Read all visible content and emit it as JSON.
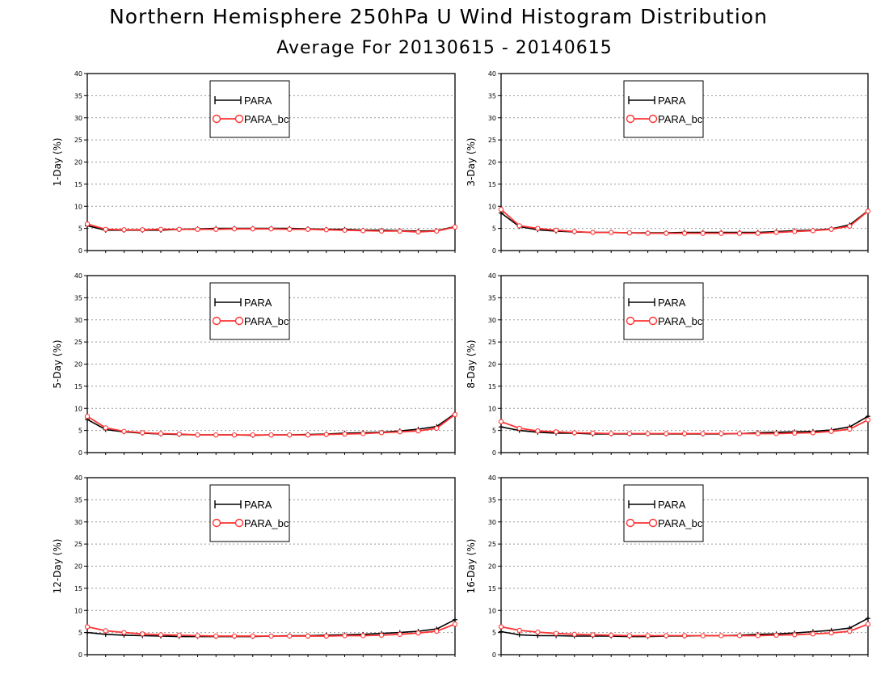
{
  "title": "Northern Hemisphere 250hPa U Wind Histogram Distribution",
  "subtitle": "Average For 20130615 - 20140615",
  "colors": {
    "PARA": "#000000",
    "PARA_bc": "#ff3333",
    "grid": "#999999"
  },
  "chart_data": [
    {
      "type": "line",
      "ylabel": "1-Day (%)",
      "ylim": [
        0,
        40
      ],
      "yticks": [
        0,
        5,
        10,
        15,
        20,
        25,
        30,
        35,
        40
      ],
      "grid": true,
      "legend": "top-center",
      "x": [
        1,
        2,
        3,
        4,
        5,
        6,
        7,
        8,
        9,
        10,
        11,
        12,
        13,
        14,
        15,
        16,
        17,
        18,
        19,
        20,
        21
      ],
      "series": [
        {
          "name": "PARA",
          "values": [
            5.6,
            4.6,
            4.6,
            4.6,
            4.6,
            4.8,
            4.9,
            5.0,
            5.0,
            5.0,
            5.0,
            5.0,
            4.9,
            4.8,
            4.8,
            4.6,
            4.6,
            4.5,
            4.4,
            4.5,
            5.4
          ]
        },
        {
          "name": "PARA_bc",
          "values": [
            6.0,
            4.8,
            4.7,
            4.7,
            4.8,
            4.8,
            4.8,
            4.8,
            4.9,
            4.9,
            4.9,
            4.8,
            4.8,
            4.7,
            4.6,
            4.5,
            4.4,
            4.4,
            4.2,
            4.4,
            5.3
          ]
        }
      ]
    },
    {
      "type": "line",
      "ylabel": "3-Day (%)",
      "ylim": [
        0,
        40
      ],
      "yticks": [
        0,
        5,
        10,
        15,
        20,
        25,
        30,
        35,
        40
      ],
      "grid": true,
      "legend": "top-center",
      "x": [
        1,
        2,
        3,
        4,
        5,
        6,
        7,
        8,
        9,
        10,
        11,
        12,
        13,
        14,
        15,
        16,
        17,
        18,
        19,
        20,
        21
      ],
      "series": [
        {
          "name": "PARA",
          "values": [
            8.5,
            5.4,
            4.7,
            4.4,
            4.2,
            4.1,
            4.1,
            4.0,
            4.0,
            4.0,
            4.1,
            4.1,
            4.1,
            4.1,
            4.1,
            4.3,
            4.5,
            4.6,
            4.9,
            5.8,
            9.0
          ]
        },
        {
          "name": "PARA_bc",
          "values": [
            9.3,
            5.6,
            5.0,
            4.6,
            4.3,
            4.1,
            4.1,
            4.0,
            3.9,
            3.9,
            3.9,
            3.9,
            3.9,
            3.9,
            3.9,
            4.1,
            4.3,
            4.5,
            4.8,
            5.5,
            8.9
          ]
        }
      ]
    },
    {
      "type": "line",
      "ylabel": "5-Day (%)",
      "ylim": [
        0,
        40
      ],
      "yticks": [
        0,
        5,
        10,
        15,
        20,
        25,
        30,
        35,
        40
      ],
      "grid": true,
      "legend": "top-center",
      "x": [
        1,
        2,
        3,
        4,
        5,
        6,
        7,
        8,
        9,
        10,
        11,
        12,
        13,
        14,
        15,
        16,
        17,
        18,
        19,
        20,
        21
      ],
      "series": [
        {
          "name": "PARA",
          "values": [
            7.5,
            5.2,
            4.7,
            4.4,
            4.2,
            4.1,
            4.0,
            4.0,
            4.0,
            3.9,
            4.0,
            4.0,
            4.1,
            4.2,
            4.4,
            4.5,
            4.6,
            4.9,
            5.3,
            5.9,
            8.8
          ]
        },
        {
          "name": "PARA_bc",
          "values": [
            8.2,
            5.6,
            4.8,
            4.5,
            4.3,
            4.2,
            4.0,
            4.0,
            4.0,
            4.0,
            4.0,
            4.0,
            4.0,
            4.1,
            4.2,
            4.3,
            4.5,
            4.7,
            4.9,
            5.5,
            8.6
          ]
        }
      ]
    },
    {
      "type": "line",
      "ylabel": "8-Day (%)",
      "ylim": [
        0,
        40
      ],
      "yticks": [
        0,
        5,
        10,
        15,
        20,
        25,
        30,
        35,
        40
      ],
      "grid": true,
      "legend": "top-center",
      "x": [
        1,
        2,
        3,
        4,
        5,
        6,
        7,
        8,
        9,
        10,
        11,
        12,
        13,
        14,
        15,
        16,
        17,
        18,
        19,
        20,
        21
      ],
      "series": [
        {
          "name": "PARA",
          "values": [
            5.8,
            5.0,
            4.6,
            4.4,
            4.4,
            4.2,
            4.2,
            4.2,
            4.2,
            4.2,
            4.2,
            4.2,
            4.2,
            4.3,
            4.5,
            4.6,
            4.7,
            4.8,
            5.1,
            5.8,
            8.2
          ]
        },
        {
          "name": "PARA_bc",
          "values": [
            7.0,
            5.5,
            4.9,
            4.7,
            4.5,
            4.4,
            4.3,
            4.3,
            4.3,
            4.3,
            4.3,
            4.3,
            4.3,
            4.3,
            4.3,
            4.3,
            4.4,
            4.5,
            4.8,
            5.3,
            7.4
          ]
        }
      ]
    },
    {
      "type": "line",
      "ylabel": "12-Day (%)",
      "ylim": [
        0,
        40
      ],
      "yticks": [
        0,
        5,
        10,
        15,
        20,
        25,
        30,
        35,
        40
      ],
      "grid": true,
      "legend": "top-center",
      "x": [
        1,
        2,
        3,
        4,
        5,
        6,
        7,
        8,
        9,
        10,
        11,
        12,
        13,
        14,
        15,
        16,
        17,
        18,
        19,
        20,
        21
      ],
      "series": [
        {
          "name": "PARA",
          "values": [
            5.0,
            4.6,
            4.4,
            4.3,
            4.2,
            4.1,
            4.1,
            4.1,
            4.1,
            4.1,
            4.2,
            4.3,
            4.3,
            4.4,
            4.5,
            4.6,
            4.8,
            5.0,
            5.3,
            5.8,
            7.9
          ]
        },
        {
          "name": "PARA_bc",
          "values": [
            6.3,
            5.4,
            5.0,
            4.7,
            4.5,
            4.4,
            4.3,
            4.2,
            4.2,
            4.2,
            4.2,
            4.2,
            4.2,
            4.2,
            4.3,
            4.3,
            4.4,
            4.6,
            4.9,
            5.3,
            6.9
          ]
        }
      ]
    },
    {
      "type": "line",
      "ylabel": "16-Day (%)",
      "ylim": [
        0,
        40
      ],
      "yticks": [
        0,
        5,
        10,
        15,
        20,
        25,
        30,
        35,
        40
      ],
      "grid": true,
      "legend": "top-center",
      "x": [
        1,
        2,
        3,
        4,
        5,
        6,
        7,
        8,
        9,
        10,
        11,
        12,
        13,
        14,
        15,
        16,
        17,
        18,
        19,
        20,
        21
      ],
      "series": [
        {
          "name": "PARA",
          "values": [
            5.2,
            4.5,
            4.3,
            4.3,
            4.2,
            4.2,
            4.2,
            4.1,
            4.1,
            4.2,
            4.2,
            4.3,
            4.3,
            4.4,
            4.6,
            4.7,
            4.9,
            5.2,
            5.5,
            6.0,
            8.2
          ]
        },
        {
          "name": "PARA_bc",
          "values": [
            6.3,
            5.5,
            5.1,
            4.8,
            4.6,
            4.5,
            4.4,
            4.3,
            4.3,
            4.3,
            4.3,
            4.3,
            4.3,
            4.3,
            4.3,
            4.4,
            4.5,
            4.7,
            4.9,
            5.3,
            6.9
          ]
        }
      ]
    }
  ]
}
